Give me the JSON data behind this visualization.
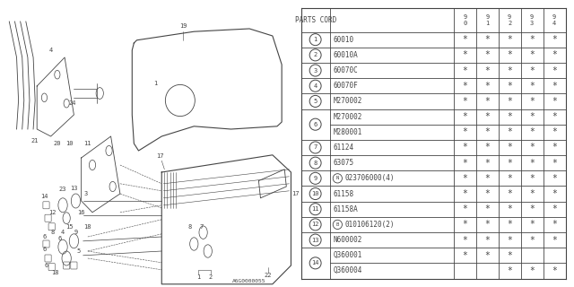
{
  "diagram_code": "A6G0000055",
  "bg_color": "#ffffff",
  "line_color": "#444444",
  "col_headers": [
    "9\n0",
    "9\n1",
    "9\n2",
    "9\n3",
    "9\n4"
  ],
  "display_rows": [
    {
      "circle_num": "1",
      "sub_rows": [
        {
          "prefix": "",
          "part": "60010",
          "stars": [
            1,
            1,
            1,
            1,
            1
          ]
        }
      ]
    },
    {
      "circle_num": "2",
      "sub_rows": [
        {
          "prefix": "",
          "part": "60010A",
          "stars": [
            1,
            1,
            1,
            1,
            1
          ]
        }
      ]
    },
    {
      "circle_num": "3",
      "sub_rows": [
        {
          "prefix": "",
          "part": "60070C",
          "stars": [
            1,
            1,
            1,
            1,
            1
          ]
        }
      ]
    },
    {
      "circle_num": "4",
      "sub_rows": [
        {
          "prefix": "",
          "part": "60070F",
          "stars": [
            1,
            1,
            1,
            1,
            1
          ]
        }
      ]
    },
    {
      "circle_num": "5",
      "sub_rows": [
        {
          "prefix": "",
          "part": "M270002",
          "stars": [
            1,
            1,
            1,
            1,
            1
          ]
        }
      ]
    },
    {
      "circle_num": "6",
      "sub_rows": [
        {
          "prefix": "",
          "part": "M270002",
          "stars": [
            1,
            1,
            1,
            1,
            1
          ]
        },
        {
          "prefix": "",
          "part": "M280001",
          "stars": [
            1,
            1,
            1,
            1,
            1
          ]
        }
      ]
    },
    {
      "circle_num": "7",
      "sub_rows": [
        {
          "prefix": "",
          "part": "61124",
          "stars": [
            1,
            1,
            1,
            1,
            1
          ]
        }
      ]
    },
    {
      "circle_num": "8",
      "sub_rows": [
        {
          "prefix": "",
          "part": "63075",
          "stars": [
            1,
            1,
            1,
            1,
            1
          ]
        }
      ]
    },
    {
      "circle_num": "9",
      "sub_rows": [
        {
          "prefix": "N",
          "part": "023706000(4)",
          "stars": [
            1,
            1,
            1,
            1,
            1
          ]
        }
      ]
    },
    {
      "circle_num": "10",
      "sub_rows": [
        {
          "prefix": "",
          "part": "61158",
          "stars": [
            1,
            1,
            1,
            1,
            1
          ]
        }
      ]
    },
    {
      "circle_num": "11",
      "sub_rows": [
        {
          "prefix": "",
          "part": "61158A",
          "stars": [
            1,
            1,
            1,
            1,
            1
          ]
        }
      ]
    },
    {
      "circle_num": "12",
      "sub_rows": [
        {
          "prefix": "B",
          "part": "010106120(2)",
          "stars": [
            1,
            1,
            1,
            1,
            1
          ]
        }
      ]
    },
    {
      "circle_num": "13",
      "sub_rows": [
        {
          "prefix": "",
          "part": "N600002",
          "stars": [
            1,
            1,
            1,
            1,
            1
          ]
        }
      ]
    },
    {
      "circle_num": "14",
      "sub_rows": [
        {
          "prefix": "",
          "part": "Q360001",
          "stars": [
            1,
            1,
            1,
            0,
            0
          ]
        },
        {
          "prefix": "",
          "part": "Q360004",
          "stars": [
            0,
            0,
            1,
            1,
            1
          ]
        }
      ]
    }
  ]
}
